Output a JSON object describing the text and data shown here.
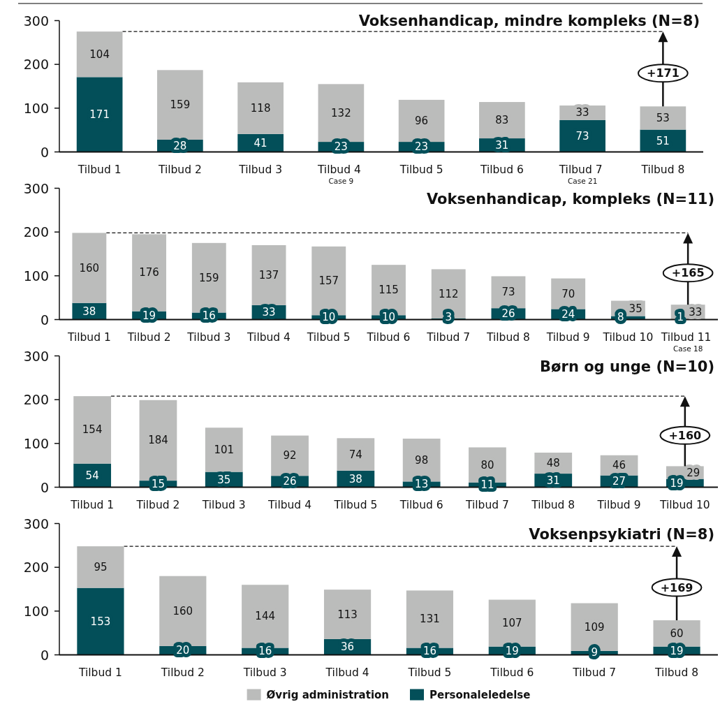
{
  "chart_data": [
    {
      "type": "bar",
      "title": "Voksenhandicap, mindre kompleks (N=8)",
      "categories": [
        "Tilbud 1",
        "Tilbud 2",
        "Tilbud 3",
        "Tilbud 4\nCase 9",
        "Tilbud 5",
        "Tilbud 6",
        "Tilbud 7\nCase 21",
        "Tilbud 8"
      ],
      "series": [
        {
          "color": "#034f59",
          "values": [
            171,
            28,
            41,
            23,
            23,
            31,
            73,
            51
          ]
        },
        {
          "color": "#bbbcbb",
          "values": [
            104,
            159,
            118,
            132,
            96,
            83,
            33,
            53
          ]
        }
      ],
      "stacked": true,
      "data_labels": true,
      "ylim": [
        0,
        300
      ],
      "yticks": [
        0,
        100,
        200,
        300
      ],
      "ref_lines": [
        {
          "axis": "y",
          "value": 275,
          "line_style": "dashed"
        }
      ],
      "annotations": [
        "+171"
      ]
    },
    {
      "type": "bar",
      "title": "Voksenhandicap, kompleks (N=11)",
      "categories": [
        "Tilbud 1",
        "Tilbud 2",
        "Tilbud 3",
        "Tilbud 4",
        "Tilbud 5",
        "Tilbud 6",
        "Tilbud 7",
        "Tilbud 8",
        "Tilbud 9",
        "Tilbud 10",
        "Tilbud 11\nCase 18"
      ],
      "series": [
        {
          "color": "#034f59",
          "values": [
            38,
            19,
            16,
            33,
            10,
            10,
            3,
            26,
            24,
            8,
            1
          ]
        },
        {
          "color": "#bbbcbb",
          "values": [
            160,
            176,
            159,
            137,
            157,
            115,
            112,
            73,
            70,
            35,
            33
          ]
        }
      ],
      "stacked": true,
      "data_labels": true,
      "ylim": [
        0,
        300
      ],
      "yticks": [
        0,
        100,
        200,
        300
      ],
      "ref_lines": [
        {
          "axis": "y",
          "value": 198,
          "line_style": "dashed"
        }
      ],
      "annotations": [
        "+165"
      ]
    },
    {
      "type": "bar",
      "title": "Børn og unge (N=10)",
      "categories": [
        "Tilbud 1",
        "Tilbud 2",
        "Tilbud 3",
        "Tilbud 4",
        "Tilbud 5",
        "Tilbud 6",
        "Tilbud 7",
        "Tilbud 8",
        "Tilbud 9",
        "Tilbud 10"
      ],
      "series": [
        {
          "color": "#034f59",
          "values": [
            54,
            15,
            35,
            26,
            38,
            13,
            11,
            31,
            27,
            19
          ]
        },
        {
          "color": "#bbbcbb",
          "values": [
            154,
            184,
            101,
            92,
            74,
            98,
            80,
            48,
            46,
            29
          ]
        }
      ],
      "stacked": true,
      "data_labels": true,
      "ylim": [
        0,
        300
      ],
      "yticks": [
        0,
        100,
        200,
        300
      ],
      "ref_lines": [
        {
          "axis": "y",
          "value": 208,
          "line_style": "dashed"
        }
      ],
      "annotations": [
        "+160"
      ]
    },
    {
      "type": "bar",
      "title": "Voksenpsykiatri (N=8)",
      "categories": [
        "Tilbud 1",
        "Tilbud 2",
        "Tilbud 3",
        "Tilbud 4",
        "Tilbud 5",
        "Tilbud 6",
        "Tilbud 7",
        "Tilbud 8"
      ],
      "series": [
        {
          "name": "Personaleledelse",
          "color": "#034f59",
          "values": [
            153,
            20,
            16,
            36,
            16,
            19,
            9,
            19
          ]
        },
        {
          "name": "Øvrig administration",
          "color": "#bbbcbb",
          "values": [
            95,
            160,
            144,
            113,
            131,
            107,
            109,
            60
          ]
        }
      ],
      "stacked": true,
      "data_labels": true,
      "ylim": [
        0,
        300
      ],
      "yticks": [
        0,
        100,
        200,
        300
      ],
      "ref_lines": [
        {
          "axis": "y",
          "value": 248,
          "line_style": "dashed"
        }
      ],
      "annotations": [
        "+169"
      ],
      "legend": "bottom"
    }
  ]
}
